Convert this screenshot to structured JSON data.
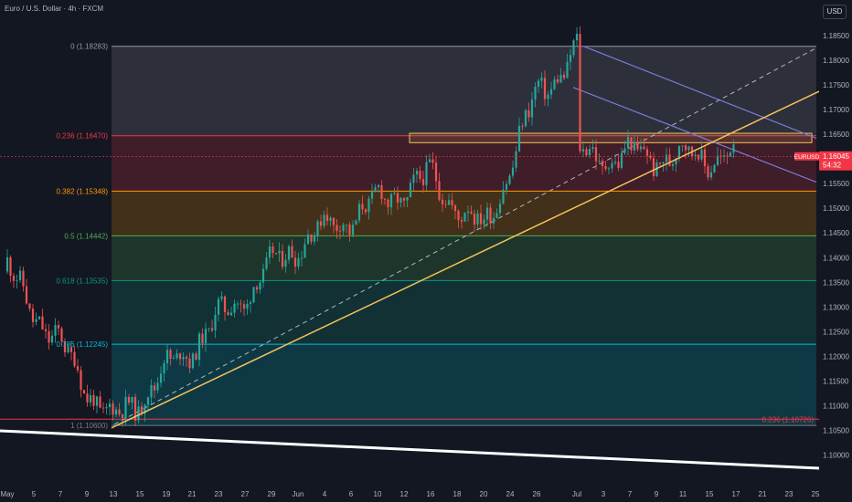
{
  "header": {
    "title": "Euro / U.S. Dollar · 4h · FXCM",
    "currency_button": "USD"
  },
  "colors": {
    "background": "#131722",
    "up": "#26a69a",
    "down": "#ef5350",
    "fib_0": "#9598a1",
    "fib_236": "#f23645",
    "fib_382": "#ff9800",
    "fib_5": "#4caf50",
    "fib_618": "#089981",
    "fib_786": "#00bcd4",
    "fib_1": "#787b86",
    "trend_orange": "#f7c35a",
    "channel": "#7b7bd6",
    "price_tag": "#f23645",
    "white_line": "#ffffff"
  },
  "chart_data": {
    "type": "candlestick",
    "symbol": "EURUSD",
    "timeframe": "4h",
    "ylim": [
      1.098,
      1.189
    ],
    "y_ticks": [
      "1.18500",
      "1.18000",
      "1.17500",
      "1.17000",
      "1.16500",
      "1.16000",
      "1.15500",
      "1.15000",
      "1.14500",
      "1.14000",
      "1.13500",
      "1.13000",
      "1.12500",
      "1.12000",
      "1.11500",
      "1.11000",
      "1.10500",
      "1.10000"
    ],
    "x_ticks": [
      "May",
      "5",
      "7",
      "9",
      "13",
      "15",
      "19",
      "21",
      "23",
      "27",
      "29",
      "Jun",
      "4",
      "6",
      "10",
      "12",
      "16",
      "18",
      "20",
      "24",
      "26",
      "Jul",
      "3",
      "7",
      "9",
      "11",
      "15",
      "17",
      "21",
      "23",
      "25"
    ],
    "last_price": {
      "symbol": "EURUSD",
      "price": "1.16045",
      "countdown": "54:32",
      "value": 1.16045
    },
    "fib_levels": [
      {
        "label": "0 (1.18283)",
        "value": 1.18283,
        "color_key": "fib_0"
      },
      {
        "label": "0.236 (1.16470)",
        "value": 1.1647,
        "color_key": "fib_236"
      },
      {
        "label": "0.382 (1.15348)",
        "value": 1.15348,
        "color_key": "fib_382"
      },
      {
        "label": "0.5 (1.14442)",
        "value": 1.14442,
        "color_key": "fib_5"
      },
      {
        "label": "0.618 (1.13535)",
        "value": 1.13535,
        "color_key": "fib_618"
      },
      {
        "label": "0.786 (1.12245)",
        "value": 1.12245,
        "color_key": "fib_786"
      },
      {
        "label": "1 (1.10600)",
        "value": 1.106,
        "color_key": "fib_1"
      }
    ],
    "secondary_fib": {
      "label": "0.236 (1.10726)",
      "value": 1.10726
    },
    "zone": {
      "from_value": 1.1652,
      "to_value": 1.1633
    },
    "anchors": [
      {
        "x_label": "May",
        "value": 1.1372
      },
      {
        "x_label": "13",
        "value": 1.1065
      },
      {
        "x_label": "Jun",
        "value": 1.1432
      },
      {
        "x_label": "16",
        "value": 1.1562
      },
      {
        "x_label": "20",
        "value": 1.1452
      },
      {
        "x_label": "26",
        "value": 1.1728
      },
      {
        "x_label": "Jul",
        "value": 1.1818
      },
      {
        "x_label": "9",
        "value": 1.1712
      },
      {
        "x_label": "15",
        "value": 1.1608
      },
      {
        "x_label": "17",
        "value": 1.1606
      }
    ]
  }
}
